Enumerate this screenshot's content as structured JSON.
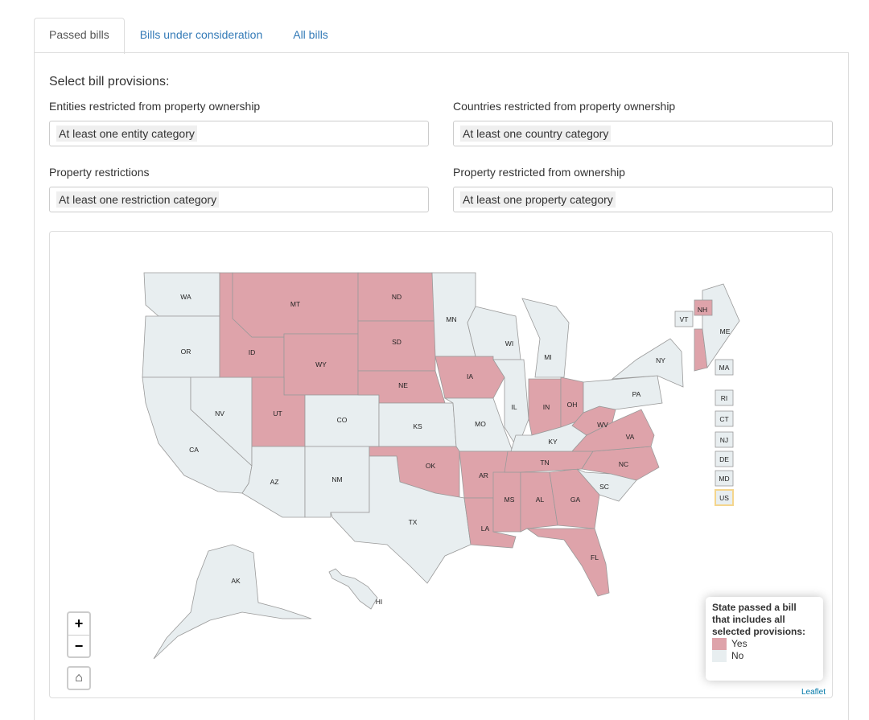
{
  "tabs": [
    {
      "label": "Passed bills",
      "active": true
    },
    {
      "label": "Bills under consideration",
      "active": false
    },
    {
      "label": "All bills",
      "active": false
    }
  ],
  "form": {
    "heading": "Select bill provisions:",
    "entities": {
      "label": "Entities restricted from property ownership",
      "value": "At least one entity category"
    },
    "countries": {
      "label": "Countries restricted from property ownership",
      "value": "At least one country category"
    },
    "restrictions": {
      "label": "Property restrictions",
      "value": "At least one restriction category"
    },
    "property": {
      "label": "Property restricted from ownership",
      "value": "At least one property category"
    }
  },
  "map": {
    "colors": {
      "yes": "#dea3aa",
      "no": "#e8eef0",
      "highlight": "#f4d58d"
    },
    "states_yes": [
      "MT",
      "ND",
      "SD",
      "WY",
      "ID",
      "UT",
      "NE",
      "IA",
      "OK",
      "AR",
      "LA",
      "MS",
      "AL",
      "GA",
      "FL",
      "TN",
      "NC",
      "VA",
      "WV",
      "OH",
      "IN",
      "NH"
    ],
    "states_no": [
      "WA",
      "OR",
      "CA",
      "NV",
      "AZ",
      "NM",
      "CO",
      "KS",
      "TX",
      "MN",
      "WI",
      "MI",
      "IL",
      "MO",
      "KY",
      "SC",
      "NY",
      "PA",
      "ME",
      "AK",
      "HI"
    ],
    "small_state_boxes": [
      "VT",
      "MA",
      "RI",
      "CT",
      "NJ",
      "DE",
      "MD",
      "US"
    ],
    "zoom_in": "+",
    "zoom_out": "−",
    "home_icon": "⌂",
    "legend": {
      "title": "State passed a bill that includes all selected provisions:",
      "yes": "Yes",
      "no": "No"
    },
    "attribution": "Leaflet"
  }
}
